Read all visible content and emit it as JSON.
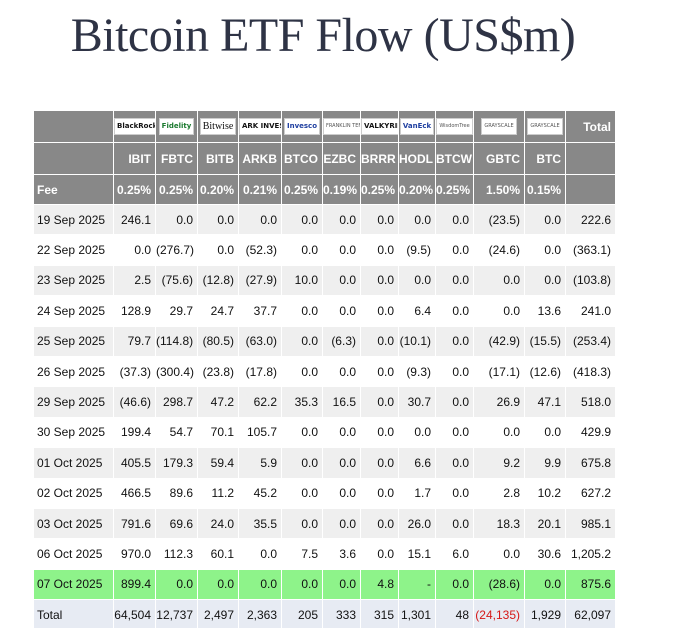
{
  "title": "Bitcoin ETF Flow (US$m)",
  "logos": [
    "BlackRock",
    "Fidelity",
    "Bitwise",
    "ARK INVEST",
    "Invesco",
    "FRANKLIN TEMPLETON",
    "VALKYRIE",
    "VanEck",
    "WisdomTree",
    "GRAYSCALE",
    "GRAYSCALE"
  ],
  "total_header": "Total",
  "tickers": [
    "IBIT",
    "FBTC",
    "BITB",
    "ARKB",
    "BTCO",
    "EZBC",
    "BRRR",
    "HODL",
    "BTCW",
    "GBTC",
    "BTC"
  ],
  "fee_label": "Fee",
  "fees": [
    "0.25%",
    "0.25%",
    "0.20%",
    "0.21%",
    "0.25%",
    "0.19%",
    "0.25%",
    "0.20%",
    "0.25%",
    "1.50%",
    "0.15%"
  ],
  "rows": [
    {
      "date": "19 Sep 2025",
      "values": [
        "246.1",
        "0.0",
        "0.0",
        "0.0",
        "0.0",
        "0.0",
        "0.0",
        "0.0",
        "0.0",
        "(23.5)",
        "0.0",
        "222.6"
      ]
    },
    {
      "date": "22 Sep 2025",
      "values": [
        "0.0",
        "(276.7)",
        "0.0",
        "(52.3)",
        "0.0",
        "0.0",
        "0.0",
        "(9.5)",
        "0.0",
        "(24.6)",
        "0.0",
        "(363.1)"
      ]
    },
    {
      "date": "23 Sep 2025",
      "values": [
        "2.5",
        "(75.6)",
        "(12.8)",
        "(27.9)",
        "10.0",
        "0.0",
        "0.0",
        "0.0",
        "0.0",
        "0.0",
        "0.0",
        "(103.8)"
      ]
    },
    {
      "date": "24 Sep 2025",
      "values": [
        "128.9",
        "29.7",
        "24.7",
        "37.7",
        "0.0",
        "0.0",
        "0.0",
        "6.4",
        "0.0",
        "0.0",
        "13.6",
        "241.0"
      ]
    },
    {
      "date": "25 Sep 2025",
      "values": [
        "79.7",
        "(114.8)",
        "(80.5)",
        "(63.0)",
        "0.0",
        "(6.3)",
        "0.0",
        "(10.1)",
        "0.0",
        "(42.9)",
        "(15.5)",
        "(253.4)"
      ]
    },
    {
      "date": "26 Sep 2025",
      "values": [
        "(37.3)",
        "(300.4)",
        "(23.8)",
        "(17.8)",
        "0.0",
        "0.0",
        "0.0",
        "(9.3)",
        "0.0",
        "(17.1)",
        "(12.6)",
        "(418.3)"
      ]
    },
    {
      "date": "29 Sep 2025",
      "values": [
        "(46.6)",
        "298.7",
        "47.2",
        "62.2",
        "35.3",
        "16.5",
        "0.0",
        "30.7",
        "0.0",
        "26.9",
        "47.1",
        "518.0"
      ]
    },
    {
      "date": "30 Sep 2025",
      "values": [
        "199.4",
        "54.7",
        "70.1",
        "105.7",
        "0.0",
        "0.0",
        "0.0",
        "0.0",
        "0.0",
        "0.0",
        "0.0",
        "429.9"
      ]
    },
    {
      "date": "01 Oct 2025",
      "values": [
        "405.5",
        "179.3",
        "59.4",
        "5.9",
        "0.0",
        "0.0",
        "0.0",
        "6.6",
        "0.0",
        "9.2",
        "9.9",
        "675.8"
      ]
    },
    {
      "date": "02 Oct 2025",
      "values": [
        "466.5",
        "89.6",
        "11.2",
        "45.2",
        "0.0",
        "0.0",
        "0.0",
        "1.7",
        "0.0",
        "2.8",
        "10.2",
        "627.2"
      ]
    },
    {
      "date": "03 Oct 2025",
      "values": [
        "791.6",
        "69.6",
        "24.0",
        "35.5",
        "0.0",
        "0.0",
        "0.0",
        "26.0",
        "0.0",
        "18.3",
        "20.1",
        "985.1"
      ]
    },
    {
      "date": "06 Oct 2025",
      "values": [
        "970.0",
        "112.3",
        "60.1",
        "0.0",
        "7.5",
        "3.6",
        "0.0",
        "15.1",
        "6.0",
        "0.0",
        "30.6",
        "1,205.2"
      ]
    },
    {
      "date": "07 Oct 2025",
      "values": [
        "899.4",
        "0.0",
        "0.0",
        "0.0",
        "0.0",
        "0.0",
        "4.8",
        "-",
        "0.0",
        "(28.6)",
        "0.0",
        "875.6"
      ],
      "highlight": true
    }
  ],
  "total_row": {
    "label": "Total",
    "values": [
      "64,504",
      "12,737",
      "2,497",
      "2,363",
      "205",
      "333",
      "315",
      "1,301",
      "48",
      "(24,135)",
      "1,929",
      "62,097"
    ]
  },
  "colors": {
    "header_bg": "#888888",
    "negative": "#d61818",
    "highlight": "#8ef38a",
    "total_bg": "#e7ebf3",
    "title": "#2e3345"
  }
}
